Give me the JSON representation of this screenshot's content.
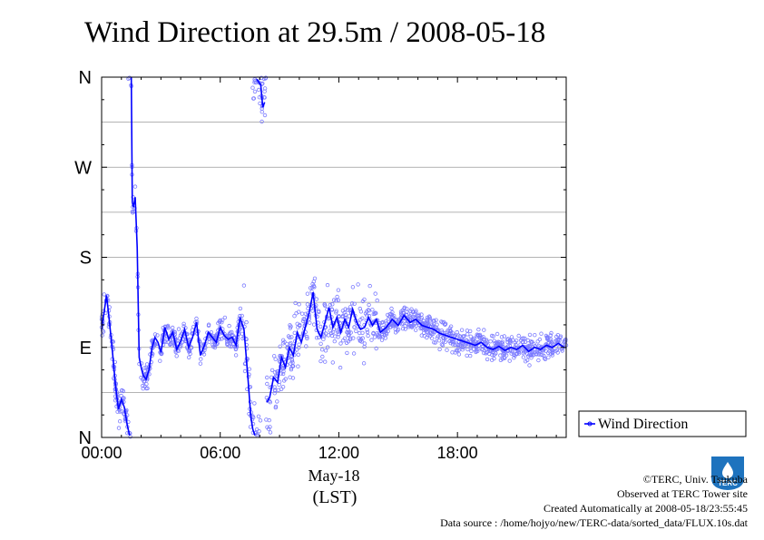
{
  "chart_data": {
    "type": "scatter",
    "title": "Wind Direction at 29.5m / 2008-05-18",
    "xlabel_date": "May-18",
    "xlabel_unit": "(LST)",
    "x_ticks": [
      {
        "hour": 0,
        "label": "00:00"
      },
      {
        "hour": 6,
        "label": "06:00"
      },
      {
        "hour": 12,
        "label": "12:00"
      },
      {
        "hour": 18,
        "label": "18:00"
      }
    ],
    "xlim": [
      0,
      23.5
    ],
    "y_ticks": [
      {
        "deg": 0,
        "label": "N"
      },
      {
        "deg": 90,
        "label": "E"
      },
      {
        "deg": 180,
        "label": "S"
      },
      {
        "deg": 270,
        "label": "W"
      },
      {
        "deg": 360,
        "label": "N"
      }
    ],
    "ylim": [
      0,
      360
    ],
    "grid": true,
    "legend_position": "bottom-right",
    "series": [
      {
        "name": "Wind Direction",
        "color": "#0000ff",
        "scatter_color": "#7b7bff",
        "points_hour": [
          0.0,
          0.25,
          0.4,
          0.55,
          0.7,
          0.85,
          1.0,
          1.15,
          1.3,
          1.42,
          1.5,
          1.55,
          1.6,
          1.7,
          1.8,
          1.9,
          2.0,
          2.1,
          2.25,
          2.4,
          2.55,
          2.7,
          2.85,
          3.0,
          3.2,
          3.4,
          3.6,
          3.8,
          4.0,
          4.2,
          4.4,
          4.6,
          4.8,
          5.0,
          5.2,
          5.4,
          5.6,
          5.8,
          6.0,
          6.2,
          6.4,
          6.6,
          6.8,
          7.0,
          7.2,
          7.4,
          7.55,
          7.65,
          7.75,
          7.85,
          7.95,
          8.05,
          8.15,
          8.25,
          8.35,
          8.5,
          8.7,
          8.9,
          9.1,
          9.3,
          9.5,
          9.7,
          9.9,
          10.1,
          10.3,
          10.5,
          10.7,
          10.9,
          11.1,
          11.3,
          11.5,
          11.7,
          11.9,
          12.1,
          12.3,
          12.5,
          12.7,
          12.9,
          13.1,
          13.3,
          13.5,
          13.7,
          13.9,
          14.1,
          14.4,
          14.7,
          15.0,
          15.3,
          15.6,
          15.9,
          16.2,
          16.5,
          16.8,
          17.1,
          17.4,
          17.7,
          18.0,
          18.3,
          18.6,
          18.9,
          19.2,
          19.5,
          19.8,
          20.1,
          20.4,
          20.7,
          21.0,
          21.3,
          21.6,
          21.9,
          22.2,
          22.5,
          22.8,
          23.1,
          23.4
        ],
        "points_deg": [
          108,
          142,
          115,
          85,
          52,
          28,
          38,
          30,
          12,
          2,
          360,
          235,
          230,
          240,
          190,
          80,
          70,
          62,
          58,
          68,
          90,
          100,
          95,
          85,
          110,
          98,
          105,
          88,
          96,
          108,
          90,
          100,
          115,
          82,
          92,
          105,
          100,
          95,
          110,
          102,
          98,
          100,
          92,
          120,
          108,
          60,
          20,
          8,
          2,
          358,
          355,
          352,
          330,
          335,
          35,
          40,
          60,
          55,
          80,
          70,
          90,
          82,
          105,
          95,
          110,
          125,
          145,
          108,
          100,
          115,
          130,
          110,
          120,
          105,
          118,
          110,
          128,
          115,
          108,
          110,
          120,
          112,
          118,
          105,
          110,
          118,
          112,
          122,
          115,
          118,
          112,
          110,
          108,
          104,
          102,
          100,
          98,
          96,
          94,
          92,
          95,
          90,
          88,
          91,
          87,
          90,
          88,
          92,
          86,
          90,
          88,
          92,
          90,
          94,
          90
        ]
      }
    ]
  },
  "credits": {
    "copyright": "©TERC, Univ. Tsukuba",
    "observed": "Observed at TERC Tower site",
    "created": "Created Automatically at 2008-05-18/23:55:45",
    "source": "Data source : /home/hojyo/new/TERC-data/sorted_data/FLUX.10s.dat"
  },
  "logo": {
    "text": "TERC",
    "color": "#1e73be"
  }
}
